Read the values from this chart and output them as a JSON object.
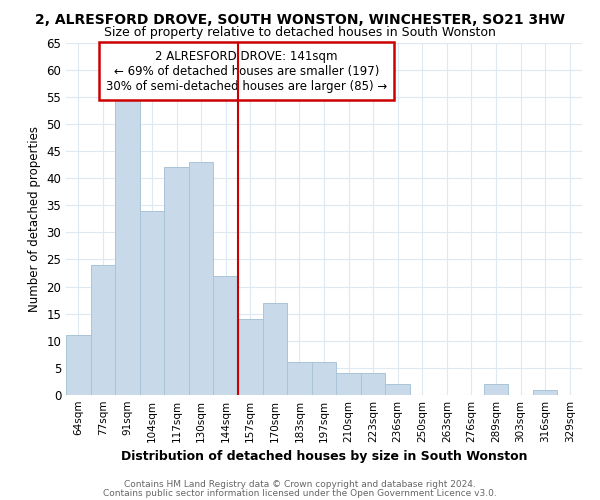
{
  "title1": "2, ALRESFORD DROVE, SOUTH WONSTON, WINCHESTER, SO21 3HW",
  "title2": "Size of property relative to detached houses in South Wonston",
  "xlabel": "Distribution of detached houses by size in South Wonston",
  "ylabel": "Number of detached properties",
  "footnote1": "Contains HM Land Registry data © Crown copyright and database right 2024.",
  "footnote2": "Contains public sector information licensed under the Open Government Licence v3.0.",
  "categories": [
    "64sqm",
    "77sqm",
    "91sqm",
    "104sqm",
    "117sqm",
    "130sqm",
    "144sqm",
    "157sqm",
    "170sqm",
    "183sqm",
    "197sqm",
    "210sqm",
    "223sqm",
    "236sqm",
    "250sqm",
    "263sqm",
    "276sqm",
    "289sqm",
    "303sqm",
    "316sqm",
    "329sqm"
  ],
  "values": [
    11,
    24,
    55,
    34,
    42,
    43,
    22,
    14,
    17,
    6,
    6,
    4,
    4,
    2,
    0,
    0,
    0,
    2,
    0,
    1,
    0
  ],
  "bar_color": "#c8d9ea",
  "bar_edge_color": "#aac4d8",
  "vline_x": 6.5,
  "vline_color": "#cc0000",
  "annotation_title": "2 ALRESFORD DROVE: 141sqm",
  "annotation_line2": "← 69% of detached houses are smaller (197)",
  "annotation_line3": "30% of semi-detached houses are larger (85) →",
  "annotation_box_color": "#cc0000",
  "annotation_bg": "#ffffff",
  "ylim": [
    0,
    65
  ],
  "yticks": [
    0,
    5,
    10,
    15,
    20,
    25,
    30,
    35,
    40,
    45,
    50,
    55,
    60,
    65
  ],
  "bg_color": "#ffffff",
  "grid_color": "#dde8f0",
  "title1_fontsize": 10,
  "title2_fontsize": 9
}
